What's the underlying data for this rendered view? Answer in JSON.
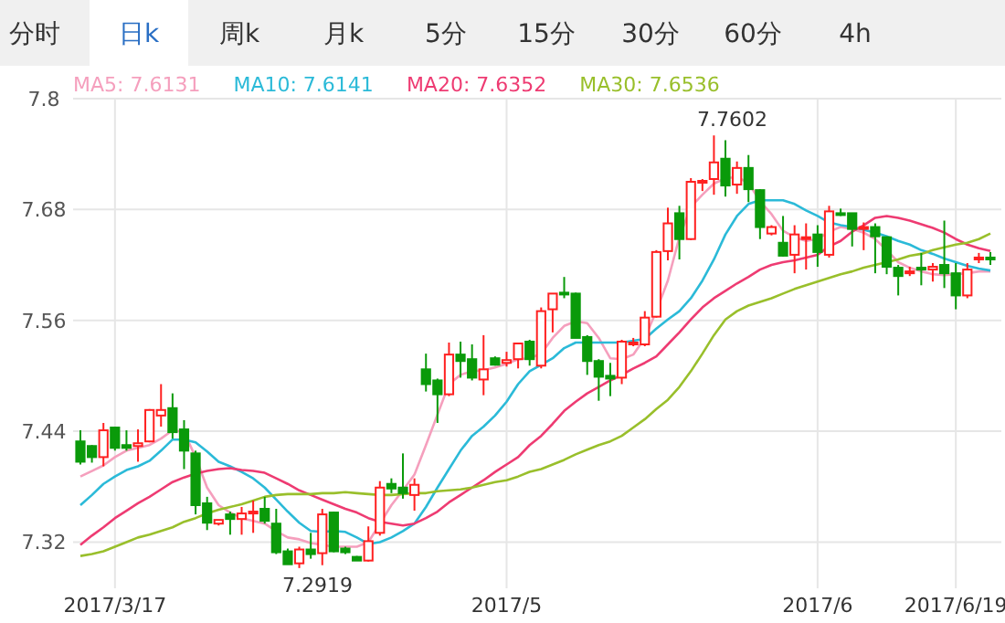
{
  "chart_data": {
    "type": "candlestick",
    "categories": [
      null,
      null,
      null,
      "2017/3/17",
      null,
      null,
      null,
      null,
      null,
      null,
      null,
      null,
      null,
      null,
      null,
      null,
      null,
      null,
      null,
      null,
      null,
      null,
      null,
      null,
      null,
      null,
      null,
      null,
      null,
      null,
      null,
      null,
      null,
      null,
      null,
      null,
      null,
      "2017/5",
      null,
      null,
      null,
      null,
      null,
      null,
      null,
      null,
      null,
      null,
      null,
      null,
      null,
      null,
      null,
      null,
      null,
      null,
      null,
      null,
      null,
      null,
      null,
      null,
      null,
      null,
      "2017/6",
      null,
      null,
      null,
      null,
      null,
      null,
      null,
      null,
      null,
      null,
      null,
      "2017/6/19",
      null,
      null,
      null
    ],
    "ohlc": [
      [
        7.429,
        7.441,
        7.404,
        7.407
      ],
      [
        7.424,
        7.425,
        7.406,
        7.412
      ],
      [
        7.412,
        7.449,
        7.402,
        7.441
      ],
      [
        7.444,
        7.445,
        7.419,
        7.422
      ],
      [
        7.425,
        7.441,
        7.419,
        7.422
      ],
      [
        7.424,
        7.442,
        7.407,
        7.427
      ],
      [
        7.429,
        7.464,
        7.428,
        7.463
      ],
      [
        7.457,
        7.491,
        7.445,
        7.463
      ],
      [
        7.465,
        7.481,
        7.432,
        7.439
      ],
      [
        7.442,
        7.452,
        7.399,
        7.419
      ],
      [
        7.416,
        7.419,
        7.35,
        7.36
      ],
      [
        7.362,
        7.369,
        7.333,
        7.341
      ],
      [
        7.34,
        7.344,
        7.338,
        7.344
      ],
      [
        7.35,
        7.353,
        7.328,
        7.345
      ],
      [
        7.345,
        7.358,
        7.328,
        7.351
      ],
      [
        7.351,
        7.365,
        7.33,
        7.353
      ],
      [
        7.356,
        7.369,
        7.34,
        7.343
      ],
      [
        7.34,
        7.356,
        7.307,
        7.309
      ],
      [
        7.31,
        7.313,
        7.296,
        7.296
      ],
      [
        7.297,
        7.315,
        7.2919,
        7.312
      ],
      [
        7.312,
        7.33,
        7.302,
        7.307
      ],
      [
        7.308,
        7.356,
        7.295,
        7.35
      ],
      [
        7.352,
        7.353,
        7.309,
        7.31
      ],
      [
        7.313,
        7.315,
        7.307,
        7.309
      ],
      [
        7.304,
        7.305,
        7.3,
        7.3
      ],
      [
        7.3,
        7.337,
        7.299,
        7.321
      ],
      [
        7.33,
        7.386,
        7.327,
        7.379
      ],
      [
        7.383,
        7.389,
        7.373,
        7.378
      ],
      [
        7.379,
        7.416,
        7.367,
        7.373
      ],
      [
        7.371,
        7.389,
        7.354,
        7.382
      ],
      [
        7.507,
        7.524,
        7.483,
        7.491
      ],
      [
        7.495,
        7.497,
        7.449,
        7.48
      ],
      [
        7.48,
        7.536,
        7.478,
        7.523
      ],
      [
        7.523,
        7.537,
        7.498,
        7.516
      ],
      [
        7.518,
        7.534,
        7.495,
        7.498
      ],
      [
        7.496,
        7.544,
        7.479,
        7.507
      ],
      [
        7.519,
        7.521,
        7.511,
        7.512
      ],
      [
        7.514,
        7.526,
        7.51,
        7.517
      ],
      [
        7.518,
        7.536,
        7.508,
        7.535
      ],
      [
        7.537,
        7.539,
        7.511,
        7.518
      ],
      [
        7.511,
        7.574,
        7.508,
        7.57
      ],
      [
        7.572,
        7.589,
        7.547,
        7.589
      ],
      [
        7.59,
        7.607,
        7.584,
        7.588
      ],
      [
        7.589,
        7.59,
        7.541,
        7.541
      ],
      [
        7.542,
        7.544,
        7.501,
        7.516
      ],
      [
        7.516,
        7.518,
        7.473,
        7.499
      ],
      [
        7.5,
        7.514,
        7.478,
        7.497
      ],
      [
        7.498,
        7.539,
        7.491,
        7.537
      ],
      [
        7.534,
        7.541,
        7.532,
        7.536
      ],
      [
        7.534,
        7.57,
        7.532,
        7.563
      ],
      [
        7.564,
        7.636,
        7.563,
        7.634
      ],
      [
        7.635,
        7.682,
        7.625,
        7.665
      ],
      [
        7.676,
        7.684,
        7.626,
        7.648
      ],
      [
        7.648,
        7.714,
        7.647,
        7.71
      ],
      [
        7.709,
        7.713,
        7.7,
        7.711
      ],
      [
        7.713,
        7.7602,
        7.696,
        7.731
      ],
      [
        7.735,
        7.755,
        7.694,
        7.706
      ],
      [
        7.707,
        7.732,
        7.697,
        7.725
      ],
      [
        7.725,
        7.739,
        7.688,
        7.702
      ],
      [
        7.701,
        7.702,
        7.648,
        7.661
      ],
      [
        7.654,
        7.663,
        7.652,
        7.661
      ],
      [
        7.644,
        7.673,
        7.629,
        7.63
      ],
      [
        7.631,
        7.663,
        7.611,
        7.653
      ],
      [
        7.649,
        7.665,
        7.615,
        7.65
      ],
      [
        7.653,
        7.663,
        7.618,
        7.634
      ],
      [
        7.631,
        7.684,
        7.628,
        7.678
      ],
      [
        7.676,
        7.681,
        7.673,
        7.674
      ],
      [
        7.676,
        7.676,
        7.64,
        7.659
      ],
      [
        7.659,
        7.666,
        7.636,
        7.661
      ],
      [
        7.661,
        7.665,
        7.611,
        7.651
      ],
      [
        7.65,
        7.651,
        7.61,
        7.618
      ],
      [
        7.617,
        7.62,
        7.587,
        7.608
      ],
      [
        7.611,
        7.618,
        7.608,
        7.613
      ],
      [
        7.617,
        7.633,
        7.598,
        7.615
      ],
      [
        7.615,
        7.622,
        7.602,
        7.618
      ],
      [
        7.62,
        7.668,
        7.595,
        7.611
      ],
      [
        7.611,
        7.622,
        7.572,
        7.587
      ],
      [
        7.587,
        7.622,
        7.584,
        7.615
      ],
      [
        7.626,
        7.633,
        7.622,
        7.628
      ],
      [
        7.628,
        7.634,
        7.62,
        7.626
      ]
    ],
    "series": [
      {
        "name": "MA5: 7.6131",
        "type": "line",
        "color": "#f59fbd",
        "values": [
          7.391,
          7.397,
          7.403,
          7.412,
          7.419,
          7.422,
          7.425,
          7.432,
          7.441,
          7.439,
          7.412,
          7.379,
          7.36,
          7.352,
          7.346,
          7.343,
          7.34,
          7.332,
          7.325,
          7.323,
          7.319,
          7.317,
          7.315,
          7.315,
          7.315,
          7.32,
          7.34,
          7.36,
          7.376,
          7.393,
          7.425,
          7.458,
          7.491,
          7.501,
          7.505,
          7.506,
          7.509,
          7.513,
          7.518,
          7.519,
          7.524,
          7.541,
          7.554,
          7.559,
          7.557,
          7.541,
          7.519,
          7.518,
          7.523,
          7.541,
          7.57,
          7.603,
          7.65,
          7.683,
          7.696,
          7.708,
          7.714,
          7.715,
          7.709,
          7.689,
          7.675,
          7.657,
          7.65,
          7.646,
          7.648,
          7.656,
          7.661,
          7.659,
          7.655,
          7.648,
          7.636,
          7.623,
          7.617,
          7.613,
          7.61,
          7.609,
          7.61,
          7.611,
          7.613,
          7.613
        ]
      },
      {
        "name": "MA10: 7.6141",
        "type": "line",
        "color": "#2bbad8",
        "values": [
          7.36,
          7.371,
          7.383,
          7.391,
          7.398,
          7.402,
          7.408,
          7.419,
          7.431,
          7.431,
          7.428,
          7.418,
          7.407,
          7.402,
          7.396,
          7.389,
          7.379,
          7.366,
          7.353,
          7.341,
          7.332,
          7.331,
          7.332,
          7.331,
          7.325,
          7.318,
          7.32,
          7.325,
          7.332,
          7.34,
          7.358,
          7.379,
          7.399,
          7.419,
          7.435,
          7.445,
          7.457,
          7.472,
          7.491,
          7.505,
          7.512,
          7.519,
          7.53,
          7.536,
          7.536,
          7.536,
          7.536,
          7.536,
          7.538,
          7.54,
          7.551,
          7.561,
          7.57,
          7.584,
          7.603,
          7.626,
          7.653,
          7.673,
          7.686,
          7.69,
          7.69,
          7.69,
          7.686,
          7.679,
          7.673,
          7.666,
          7.663,
          7.661,
          7.658,
          7.655,
          7.651,
          7.646,
          7.642,
          7.636,
          7.632,
          7.627,
          7.623,
          7.619,
          7.616,
          7.614
        ]
      },
      {
        "name": "MA20: 7.6352",
        "type": "line",
        "color": "#ee3b72",
        "values": [
          7.317,
          7.327,
          7.336,
          7.346,
          7.354,
          7.362,
          7.369,
          7.377,
          7.385,
          7.39,
          7.394,
          7.397,
          7.399,
          7.4,
          7.398,
          7.397,
          7.395,
          7.389,
          7.383,
          7.376,
          7.371,
          7.366,
          7.361,
          7.356,
          7.352,
          7.346,
          7.342,
          7.34,
          7.338,
          7.34,
          7.346,
          7.353,
          7.363,
          7.371,
          7.379,
          7.387,
          7.396,
          7.404,
          7.412,
          7.425,
          7.435,
          7.448,
          7.462,
          7.472,
          7.481,
          7.488,
          7.495,
          7.501,
          7.508,
          7.514,
          7.521,
          7.534,
          7.547,
          7.561,
          7.574,
          7.584,
          7.592,
          7.6,
          7.607,
          7.615,
          7.62,
          7.623,
          7.625,
          7.628,
          7.631,
          7.64,
          7.646,
          7.656,
          7.663,
          7.671,
          7.673,
          7.671,
          7.668,
          7.664,
          7.66,
          7.655,
          7.648,
          7.642,
          7.638,
          7.635
        ]
      },
      {
        "name": "MA30: 7.6536",
        "type": "line",
        "color": "#99bf2b",
        "values": [
          7.305,
          7.307,
          7.31,
          7.315,
          7.32,
          7.325,
          7.328,
          7.332,
          7.336,
          7.342,
          7.346,
          7.351,
          7.355,
          7.358,
          7.361,
          7.365,
          7.369,
          7.371,
          7.372,
          7.372,
          7.372,
          7.373,
          7.373,
          7.374,
          7.373,
          7.372,
          7.371,
          7.371,
          7.372,
          7.373,
          7.373,
          7.375,
          7.376,
          7.377,
          7.379,
          7.382,
          7.385,
          7.387,
          7.391,
          7.396,
          7.399,
          7.404,
          7.409,
          7.415,
          7.42,
          7.425,
          7.429,
          7.435,
          7.444,
          7.453,
          7.464,
          7.474,
          7.488,
          7.505,
          7.524,
          7.544,
          7.561,
          7.57,
          7.576,
          7.58,
          7.584,
          7.589,
          7.594,
          7.598,
          7.602,
          7.606,
          7.61,
          7.613,
          7.617,
          7.62,
          7.623,
          7.626,
          7.63,
          7.632,
          7.636,
          7.639,
          7.642,
          7.644,
          7.648,
          7.654
        ]
      }
    ],
    "ylim": [
      7.27,
      7.8
    ],
    "yticks": [
      7.32,
      7.44,
      7.56,
      7.68,
      7.8
    ],
    "grid": true,
    "legend": "top left",
    "annotations": [
      "分时",
      "日k",
      "周k",
      "月k",
      "5分",
      "15分",
      "30分",
      "60分",
      "4h",
      {
        "text": "7.7602",
        "y": 7.7602
      },
      {
        "text": "7.2919",
        "y": 7.2919
      }
    ]
  }
}
